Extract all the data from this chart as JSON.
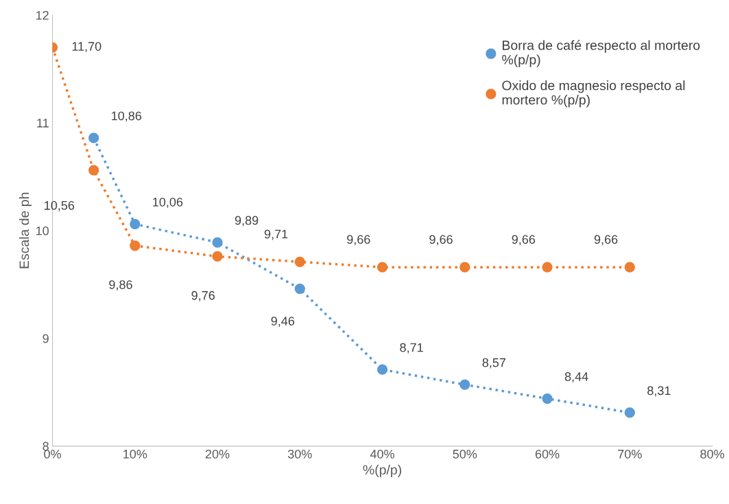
{
  "chart_data": {
    "type": "line",
    "xlabel": "%(p/p)",
    "ylabel": "Escala de ph",
    "series": [
      {
        "name": "Borra de café respecto al mortero\n%(p/p)",
        "color": "#5b9bd5",
        "x": [
          5,
          10,
          20,
          30,
          40,
          50,
          60,
          70
        ],
        "values": [
          10.86,
          10.06,
          9.89,
          9.46,
          8.71,
          8.57,
          8.44,
          8.31
        ],
        "value_labels": [
          "10,86",
          "10,06",
          "9,89",
          "9,46",
          "8,71",
          "8,57",
          "8,44",
          "8,31"
        ]
      },
      {
        "name": "Oxido de magnesio respecto al\nmortero %(p/p)",
        "color": "#ed7d31",
        "x": [
          0,
          5,
          10,
          20,
          30,
          40,
          50,
          60,
          70
        ],
        "values": [
          11.7,
          10.56,
          9.86,
          9.76,
          9.71,
          9.66,
          9.66,
          9.66,
          9.66
        ],
        "value_labels": [
          "11,70",
          "10,56",
          "9,86",
          "9,76",
          "9,71",
          "9,66",
          "9,66",
          "9,66",
          "9,66"
        ]
      }
    ],
    "xlim": [
      0,
      80
    ],
    "xticks": [
      {
        "value": 0,
        "label": "0%"
      },
      {
        "value": 10,
        "label": "10%"
      },
      {
        "value": 20,
        "label": "20%"
      },
      {
        "value": 30,
        "label": "30%"
      },
      {
        "value": 40,
        "label": "40%"
      },
      {
        "value": 50,
        "label": "50%"
      },
      {
        "value": 60,
        "label": "60%"
      },
      {
        "value": 70,
        "label": "70%"
      },
      {
        "value": 80,
        "label": "80%"
      }
    ],
    "ylim": [
      8,
      12
    ],
    "yticks": [
      8,
      9,
      10,
      11,
      12
    ],
    "marker": "circle",
    "line_style": "dotted",
    "legend": "top right",
    "grid": false
  }
}
